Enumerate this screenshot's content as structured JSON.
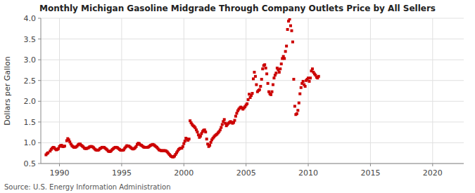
{
  "chart_data": {
    "type": "scatter",
    "title": "Monthly Michigan Gasoline Midgrade Through Company Outlets Price by All Sellers",
    "y_label": "Dollars per Gallon",
    "annotations": [
      "Source: U.S. Energy Information Administration"
    ],
    "color": "#cc0000",
    "marker": "square",
    "grid": true,
    "xlim": [
      1988.5,
      2022.5
    ],
    "ylim": [
      0.5,
      4.0
    ],
    "xticks": [
      1990,
      1995,
      2000,
      2005,
      2010,
      2015,
      2020
    ],
    "yticks": [
      0.5,
      {
        "value": 1.0,
        "label": "1.0"
      },
      1.5,
      {
        "value": 2.0,
        "label": "2.0"
      },
      2.5,
      {
        "value": 3.0,
        "label": "3.0"
      },
      3.5,
      {
        "value": 4.0,
        "label": "4.0"
      }
    ],
    "x": [
      1988.917,
      1989.0,
      1989.083,
      1989.25,
      1989.333,
      1989.417,
      1989.5,
      1989.583,
      1989.667,
      1989.75,
      1989.833,
      1989.917,
      1990.0,
      1990.083,
      1990.167,
      1990.25,
      1990.333,
      1990.417,
      1990.583,
      1990.667,
      1990.75,
      1990.833,
      1990.917,
      1991.0,
      1991.083,
      1991.167,
      1991.25,
      1991.333,
      1991.417,
      1991.5,
      1991.583,
      1991.667,
      1991.75,
      1991.833,
      1991.917,
      1992.0,
      1992.083,
      1992.167,
      1992.25,
      1992.333,
      1992.417,
      1992.5,
      1992.583,
      1992.667,
      1992.75,
      1992.833,
      1992.917,
      1993.0,
      1993.083,
      1993.167,
      1993.25,
      1993.333,
      1993.417,
      1993.5,
      1993.583,
      1993.667,
      1993.75,
      1993.833,
      1993.917,
      1994.0,
      1994.083,
      1994.167,
      1994.25,
      1994.333,
      1994.417,
      1994.5,
      1994.583,
      1994.667,
      1994.75,
      1994.833,
      1994.917,
      1995.0,
      1995.083,
      1995.167,
      1995.25,
      1995.333,
      1995.417,
      1995.5,
      1995.583,
      1995.667,
      1995.75,
      1995.833,
      1995.917,
      1996.0,
      1996.083,
      1996.167,
      1996.25,
      1996.333,
      1996.417,
      1996.5,
      1996.583,
      1996.667,
      1996.75,
      1996.833,
      1996.917,
      1997.0,
      1997.083,
      1997.167,
      1997.25,
      1997.333,
      1997.417,
      1997.5,
      1997.583,
      1997.667,
      1997.75,
      1997.833,
      1997.917,
      1998.0,
      1998.083,
      1998.167,
      1998.25,
      1998.333,
      1998.417,
      1998.5,
      1998.583,
      1998.667,
      1998.75,
      1998.833,
      1998.917,
      1999.0,
      1999.083,
      1999.167,
      1999.25,
      1999.333,
      1999.417,
      1999.5,
      1999.583,
      1999.667,
      1999.75,
      1999.833,
      1999.917,
      2000.0,
      2000.083,
      2000.167,
      2000.25,
      2000.333,
      2000.417,
      2000.5,
      2000.583,
      2000.667,
      2000.75,
      2000.833,
      2000.917,
      2001.0,
      2001.083,
      2001.167,
      2001.25,
      2001.333,
      2001.417,
      2001.5,
      2001.583,
      2001.667,
      2001.75,
      2001.833,
      2001.917,
      2002.0,
      2002.083,
      2002.167,
      2002.25,
      2002.333,
      2002.417,
      2002.5,
      2002.583,
      2002.667,
      2002.75,
      2002.833,
      2002.917,
      2003.0,
      2003.083,
      2003.167,
      2003.25,
      2003.333,
      2003.417,
      2003.5,
      2003.583,
      2003.667,
      2003.75,
      2003.833,
      2003.917,
      2004.0,
      2004.083,
      2004.167,
      2004.25,
      2004.333,
      2004.417,
      2004.5,
      2004.583,
      2004.667,
      2004.75,
      2004.833,
      2004.917,
      2005.0,
      2005.083,
      2005.167,
      2005.25,
      2005.333,
      2005.417,
      2005.5,
      2005.583,
      2005.667,
      2005.75,
      2005.833,
      2005.917,
      2006.0,
      2006.083,
      2006.167,
      2006.25,
      2006.333,
      2006.417,
      2006.5,
      2006.583,
      2006.667,
      2006.75,
      2006.833,
      2006.917,
      2007.0,
      2007.083,
      2007.167,
      2007.25,
      2007.333,
      2007.417,
      2007.5,
      2007.583,
      2007.667,
      2007.75,
      2007.833,
      2007.917,
      2008.0,
      2008.083,
      2008.167,
      2008.25,
      2008.333,
      2008.417,
      2008.5,
      2008.583,
      2008.667,
      2008.75,
      2008.833,
      2008.917,
      2009.0,
      2009.083,
      2009.167,
      2009.25,
      2009.333,
      2009.417,
      2009.5,
      2009.583,
      2009.667,
      2009.75,
      2009.833,
      2009.917,
      2010.0,
      2010.083,
      2010.167,
      2010.25,
      2010.333,
      2010.417,
      2010.5,
      2010.583,
      2010.667,
      2010.75,
      2010.833
    ],
    "values": [
      0.71,
      0.74,
      0.76,
      0.8,
      0.84,
      0.87,
      0.89,
      0.88,
      0.85,
      0.83,
      0.84,
      0.86,
      0.91,
      0.93,
      0.94,
      0.91,
      0.91,
      0.92,
      1.05,
      1.1,
      1.07,
      1.02,
      0.97,
      0.93,
      0.91,
      0.89,
      0.89,
      0.9,
      0.92,
      0.95,
      0.97,
      0.97,
      0.94,
      0.92,
      0.9,
      0.87,
      0.86,
      0.86,
      0.87,
      0.88,
      0.9,
      0.91,
      0.91,
      0.9,
      0.88,
      0.85,
      0.83,
      0.82,
      0.82,
      0.83,
      0.86,
      0.87,
      0.89,
      0.89,
      0.89,
      0.87,
      0.85,
      0.83,
      0.8,
      0.79,
      0.79,
      0.81,
      0.84,
      0.86,
      0.88,
      0.89,
      0.89,
      0.88,
      0.86,
      0.84,
      0.82,
      0.82,
      0.82,
      0.83,
      0.87,
      0.9,
      0.93,
      0.92,
      0.92,
      0.9,
      0.88,
      0.86,
      0.85,
      0.86,
      0.88,
      0.91,
      0.96,
      0.99,
      0.98,
      0.95,
      0.94,
      0.92,
      0.9,
      0.89,
      0.89,
      0.89,
      0.89,
      0.9,
      0.92,
      0.94,
      0.95,
      0.96,
      0.95,
      0.93,
      0.91,
      0.89,
      0.86,
      0.83,
      0.82,
      0.81,
      0.81,
      0.81,
      0.81,
      0.81,
      0.8,
      0.78,
      0.75,
      0.72,
      0.69,
      0.67,
      0.66,
      0.66,
      0.68,
      0.72,
      0.76,
      0.8,
      0.84,
      0.86,
      0.87,
      0.87,
      0.91,
      0.98,
      1.04,
      1.11,
      1.09,
      1.06,
      1.09,
      1.53,
      1.48,
      1.44,
      1.41,
      1.39,
      1.36,
      1.31,
      1.26,
      1.19,
      1.13,
      1.16,
      1.22,
      1.27,
      1.3,
      1.31,
      1.26,
      1.09,
      0.97,
      0.91,
      0.94,
      1.01,
      1.07,
      1.11,
      1.14,
      1.17,
      1.19,
      1.21,
      1.24,
      1.27,
      1.31,
      1.37,
      1.44,
      1.51,
      1.56,
      1.47,
      1.41,
      1.44,
      1.47,
      1.49,
      1.51,
      1.49,
      1.47,
      1.49,
      1.54,
      1.64,
      1.71,
      1.77,
      1.81,
      1.84,
      1.86,
      1.84,
      1.81,
      1.84,
      1.87,
      1.91,
      1.94,
      2.04,
      2.17,
      2.09,
      2.14,
      2.19,
      2.54,
      2.7,
      2.6,
      2.4,
      2.23,
      2.26,
      2.28,
      2.36,
      2.53,
      2.78,
      2.86,
      2.88,
      2.8,
      2.66,
      2.43,
      2.23,
      2.18,
      2.16,
      2.23,
      2.4,
      2.56,
      2.63,
      2.68,
      2.8,
      2.76,
      2.7,
      2.78,
      2.9,
      3.03,
      3.08,
      3.03,
      3.2,
      3.33,
      3.73,
      3.93,
      3.98,
      3.82,
      3.7,
      3.43,
      2.53,
      1.88,
      1.68,
      1.7,
      1.78,
      1.96,
      2.18,
      2.33,
      2.43,
      2.48,
      2.4,
      2.36,
      2.5,
      2.53,
      2.56,
      2.48,
      2.56,
      2.73,
      2.78,
      2.7,
      2.66,
      2.63,
      2.58,
      2.56,
      2.6
    ]
  }
}
